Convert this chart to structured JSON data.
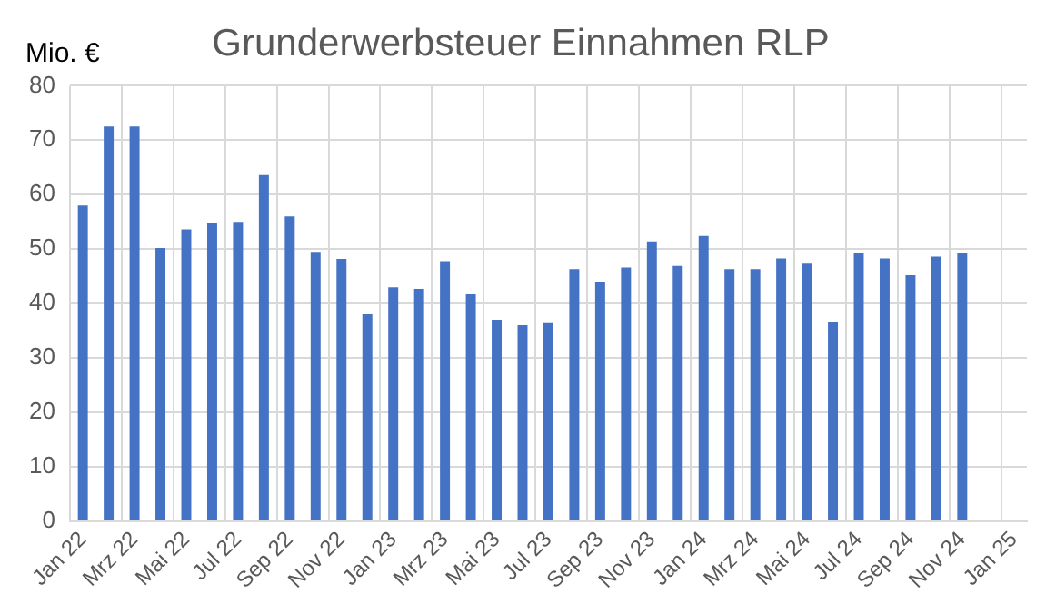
{
  "chart_data": {
    "type": "bar",
    "title": "Grunderwerbsteuer Einnahmen RLP",
    "ylabel": "Mio. €",
    "categories": [
      "Jan 22",
      null,
      "Mrz 22",
      null,
      "Mai 22",
      null,
      "Jul 22",
      null,
      "Sep 22",
      null,
      "Nov 22",
      null,
      "Jan 23",
      null,
      "Mrz 23",
      null,
      "Mai 23",
      null,
      "Jul 23",
      null,
      "Sep 23",
      null,
      "Nov 23",
      null,
      "Jan 24",
      null,
      "Mrz 24",
      null,
      "Mai 24",
      null,
      "Jul 24",
      null,
      "Sep 24",
      null,
      "Nov 24",
      null,
      "Jan 25"
    ],
    "values": [
      58,
      72.5,
      72.5,
      50.2,
      53.6,
      54.7,
      55,
      63.6,
      56,
      49.5,
      48.2,
      38,
      43,
      42.7,
      47.8,
      41.7,
      37,
      36,
      36.4,
      46.3,
      43.9,
      46.6,
      51.4,
      46.9,
      52.4,
      46.3,
      46.3,
      48.3,
      47.3,
      36.7,
      49.3,
      48.3,
      45.2,
      48.6,
      49.3,
      null,
      null
    ],
    "color": "#4472c4",
    "ylim": [
      0,
      80
    ],
    "yticks": [
      0,
      10,
      20,
      30,
      40,
      50,
      60,
      70,
      80
    ],
    "grid": true
  }
}
